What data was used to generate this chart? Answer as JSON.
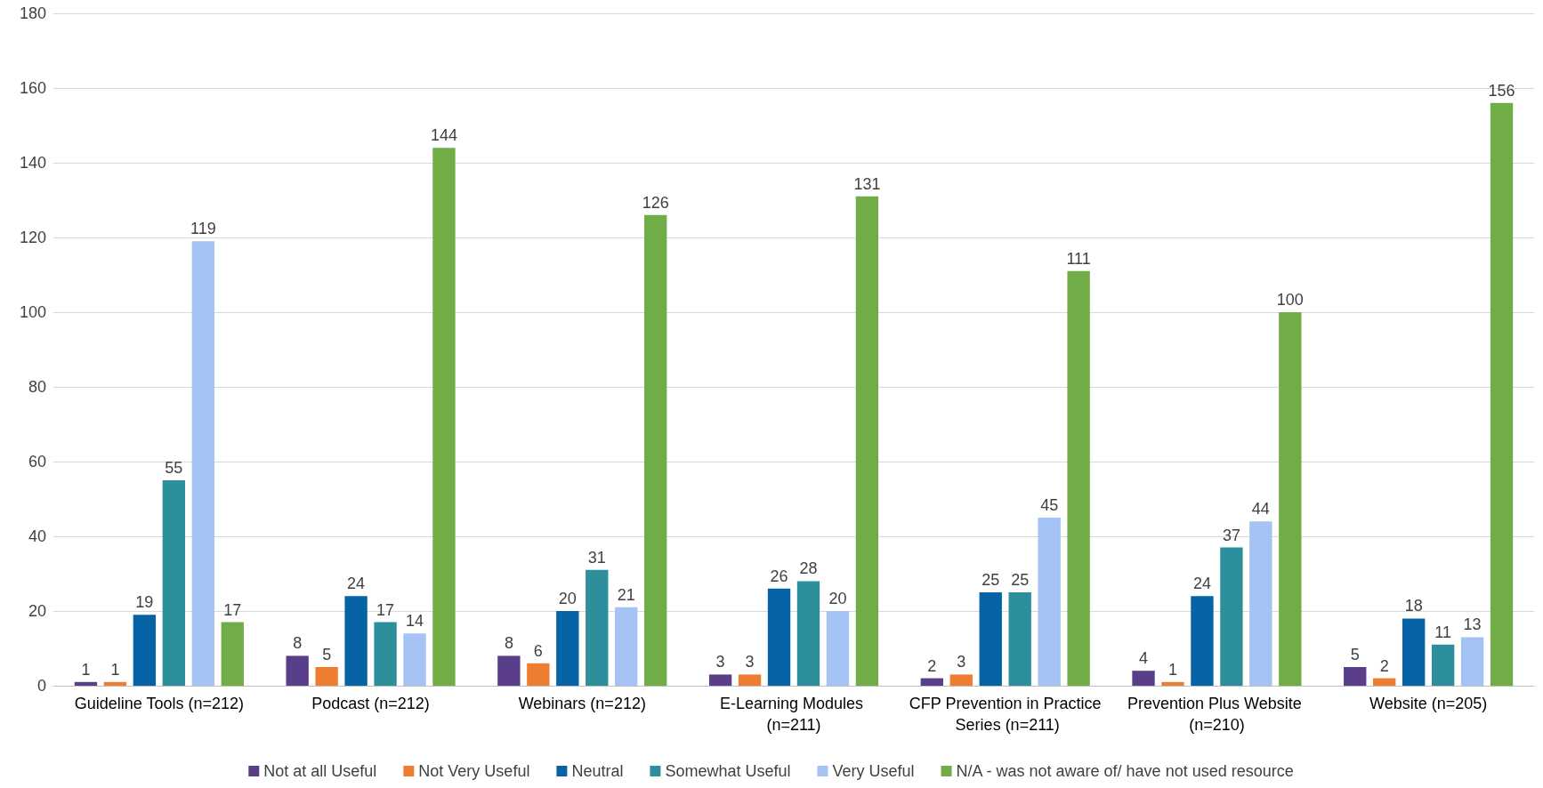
{
  "chart_data": {
    "type": "bar",
    "categories": [
      "Guideline Tools (n=212)",
      "Podcast (n=212)",
      "Webinars (n=212)",
      "E-Learning Modules (n=211)",
      "CFP Prevention in Practice Series (n=211)",
      "Prevention Plus Website (n=210)",
      "Website (n=205)"
    ],
    "series": [
      {
        "name": "Not at all Useful",
        "color": "#5a3e8a",
        "values": [
          1,
          8,
          8,
          3,
          2,
          4,
          5
        ]
      },
      {
        "name": "Not Very Useful",
        "color": "#ed7d31",
        "values": [
          1,
          5,
          6,
          3,
          3,
          1,
          2
        ]
      },
      {
        "name": "Neutral",
        "color": "#0563a6",
        "values": [
          19,
          24,
          20,
          26,
          25,
          24,
          18
        ]
      },
      {
        "name": "Somewhat Useful",
        "color": "#2e8f9c",
        "values": [
          55,
          17,
          31,
          28,
          25,
          37,
          11
        ]
      },
      {
        "name": "Very Useful",
        "color": "#a4c2f4",
        "values": [
          119,
          14,
          21,
          20,
          45,
          44,
          13
        ]
      },
      {
        "name": "N/A - was not aware of/ have not used resource",
        "color": "#70ad47",
        "values": [
          17,
          144,
          126,
          131,
          111,
          100,
          156
        ]
      }
    ],
    "ylim": [
      0,
      180
    ],
    "yticks": [
      0,
      20,
      40,
      60,
      80,
      100,
      120,
      140,
      160,
      180
    ],
    "grid": "y",
    "legend": "bottom",
    "data_labels": true
  }
}
